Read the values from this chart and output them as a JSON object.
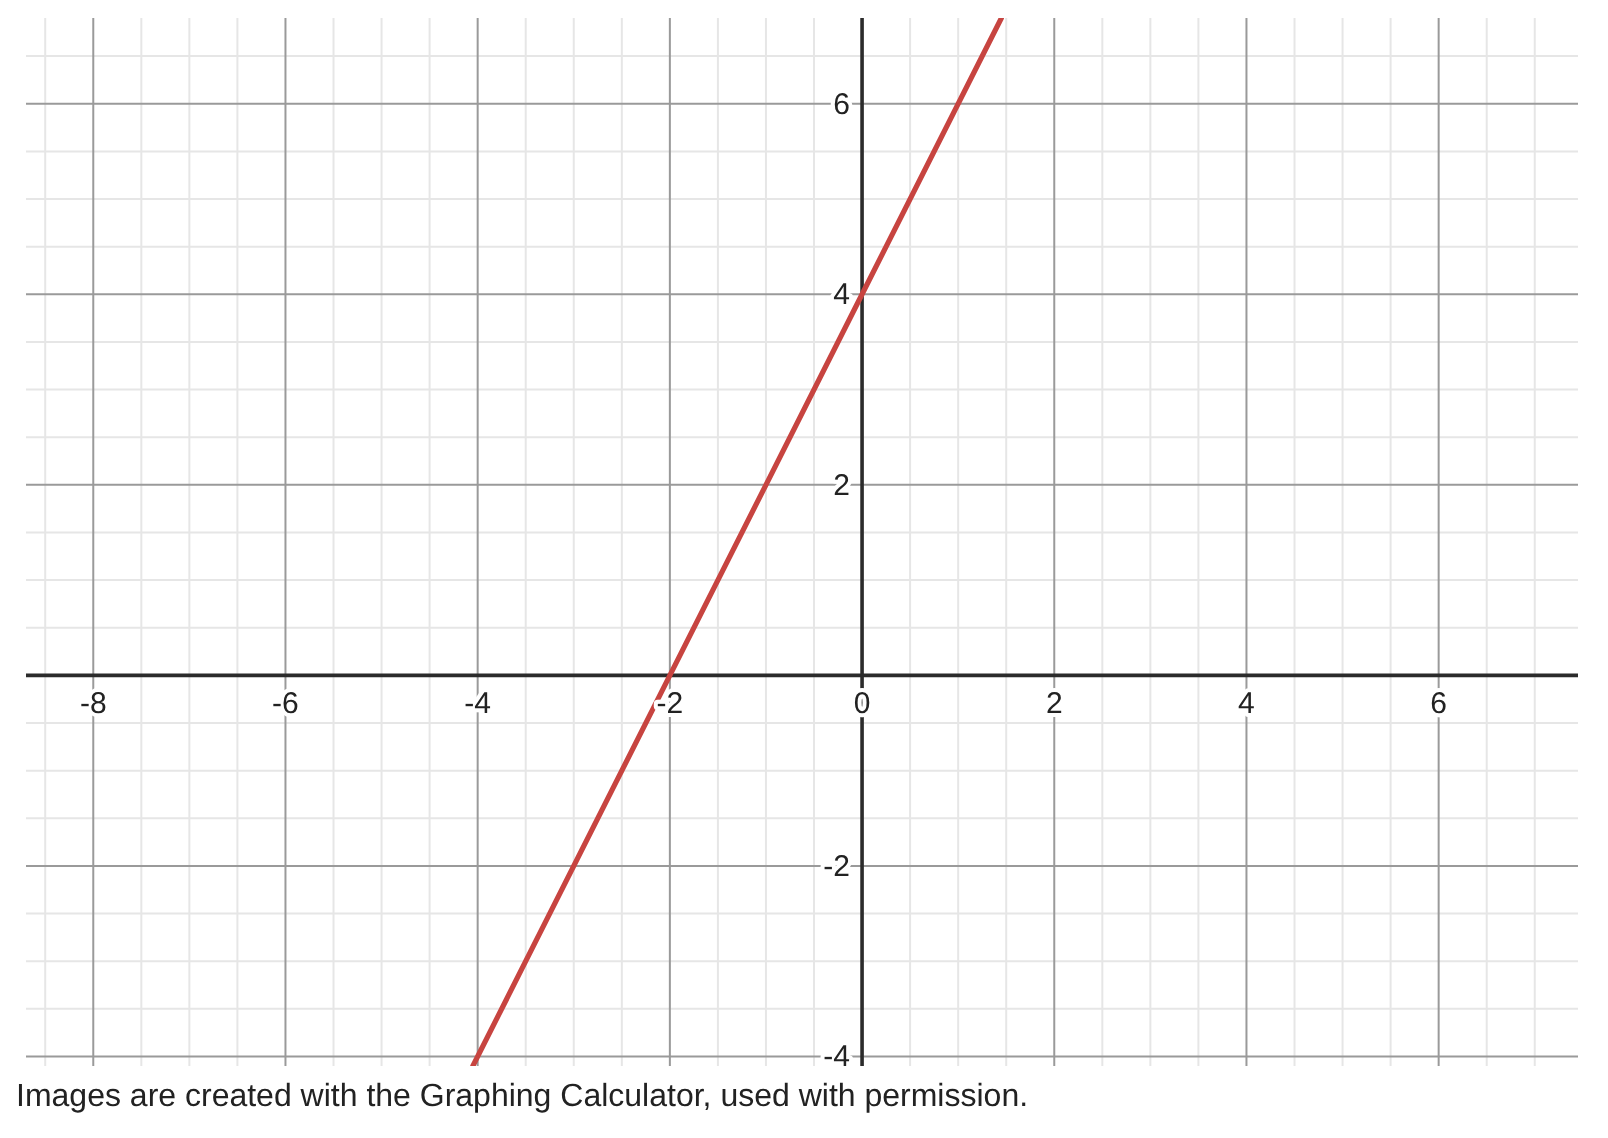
{
  "chart_data": {
    "type": "line",
    "x": [
      -4.05,
      -2,
      0,
      1.45
    ],
    "values": [
      -4.1,
      0,
      4,
      6.9
    ],
    "color": "#c74440",
    "xlim": [
      -8.7,
      7.45
    ],
    "ylim": [
      -4.1,
      6.9
    ],
    "xticks": [
      {
        "value": -8.5,
        "label": null
      },
      -8,
      {
        "value": -7.5,
        "label": null
      },
      {
        "value": -7,
        "label": null
      },
      {
        "value": -6.5,
        "label": null
      },
      -6,
      {
        "value": -5.5,
        "label": null
      },
      {
        "value": -5,
        "label": null
      },
      {
        "value": -4.5,
        "label": null
      },
      -4,
      {
        "value": -3.5,
        "label": null
      },
      {
        "value": -3,
        "label": null
      },
      {
        "value": -2.5,
        "label": null
      },
      -2,
      {
        "value": -1.5,
        "label": null
      },
      {
        "value": -1,
        "label": null
      },
      {
        "value": -0.5,
        "label": null
      },
      0,
      {
        "value": 0.5,
        "label": null
      },
      {
        "value": 1,
        "label": null
      },
      {
        "value": 1.5,
        "label": null
      },
      2,
      {
        "value": 2.5,
        "label": null
      },
      {
        "value": 3,
        "label": null
      },
      {
        "value": 3.5,
        "label": null
      },
      4,
      {
        "value": 4.5,
        "label": null
      },
      {
        "value": 5,
        "label": null
      },
      {
        "value": 5.5,
        "label": null
      },
      6,
      {
        "value": 6.5,
        "label": null
      },
      {
        "value": 7,
        "label": null
      }
    ],
    "yticks": [
      -4,
      {
        "value": -3.5,
        "label": null
      },
      {
        "value": -3,
        "label": null
      },
      {
        "value": -2.5,
        "label": null
      },
      -2,
      {
        "value": -1.5,
        "label": null
      },
      {
        "value": -1,
        "label": null
      },
      {
        "value": -0.5,
        "label": null
      },
      {
        "value": 0,
        "label": null
      },
      {
        "value": 0.5,
        "label": null
      },
      {
        "value": 1,
        "label": null
      },
      {
        "value": 1.5,
        "label": null
      },
      2,
      {
        "value": 2.5,
        "label": null
      },
      {
        "value": 3,
        "label": null
      },
      {
        "value": 3.5,
        "label": null
      },
      4,
      {
        "value": 4.5,
        "label": null
      },
      {
        "value": 5,
        "label": null
      },
      {
        "value": 5.5,
        "label": null
      },
      6,
      {
        "value": 6.5,
        "label": null
      }
    ],
    "grid": true,
    "annotations": [
      "Images are created with the Graphing Calculator, used with permission."
    ]
  }
}
